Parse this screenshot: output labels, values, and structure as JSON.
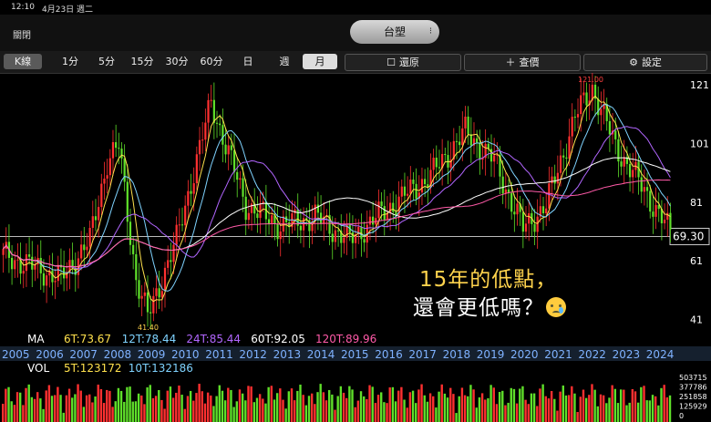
{
  "status": {
    "time": "12:10",
    "date": "4月23日 週二"
  },
  "header": {
    "close_label": "關閉",
    "title": "台塑"
  },
  "toolbar": {
    "kline": "K線",
    "periods": [
      "1分",
      "5分",
      "15分",
      "30分",
      "60分",
      "日",
      "週",
      "月"
    ],
    "selected": "月",
    "restore_label": "還原",
    "lookup_label": "查價",
    "settings_label": "設定"
  },
  "price_axis": {
    "ticks": [
      "121",
      "101",
      "81",
      "61",
      "41"
    ],
    "current": "69.30"
  },
  "annotations": {
    "high_label": "121.00",
    "low_label": "41.40"
  },
  "ma_row": {
    "label": "MA",
    "items": [
      {
        "text": "6T:73.67",
        "color": "#ffe14d"
      },
      {
        "text": "12T:78.44",
        "color": "#7fd3ff"
      },
      {
        "text": "24T:85.44",
        "color": "#b266ff"
      },
      {
        "text": "60T:92.05",
        "color": "#ffffff"
      },
      {
        "text": "120T:89.96",
        "color": "#ff5aa8"
      }
    ]
  },
  "years": [
    "2005",
    "2006",
    "2007",
    "2008",
    "2009",
    "2010",
    "2011",
    "2012",
    "2013",
    "2014",
    "2015",
    "2016",
    "2017",
    "2018",
    "2019",
    "2020",
    "2021",
    "2022",
    "2023",
    "2024"
  ],
  "vol_row": {
    "label": "VOL",
    "items": [
      {
        "text": "5T:123172",
        "color": "#ffe14d"
      },
      {
        "text": "10T:132186",
        "color": "#7fd3ff"
      }
    ],
    "ticks": [
      "503715",
      "377786",
      "251858",
      "125929",
      "0"
    ]
  },
  "overlay": {
    "line1": "15年的低點，",
    "line2": "還會更低嗎？"
  },
  "colors": {
    "up": "#ff3030",
    "down": "#5fe02a",
    "grid": "#333333",
    "accent_pill": "#c8c8c8"
  }
}
